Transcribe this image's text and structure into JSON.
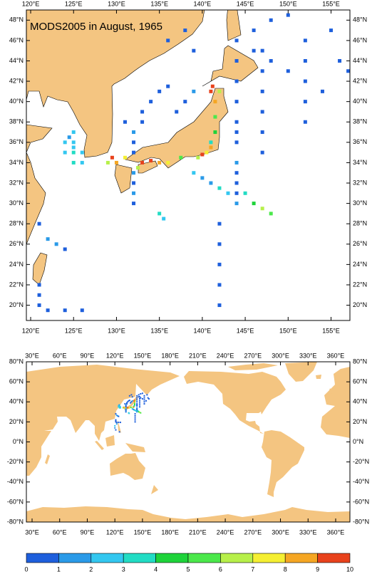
{
  "chart_data": {
    "type": "map",
    "title": "MODS2005 in August, 1965",
    "panels": [
      {
        "xlim": [
          119.5,
          157.2
        ],
        "ylim": [
          18.5,
          49
        ],
        "xticks": [
          {
            "value": 120,
            "label": "120°E"
          },
          {
            "value": 125,
            "label": "125°E"
          },
          {
            "value": 130,
            "label": "130°E"
          },
          {
            "value": 135,
            "label": "135°E"
          },
          {
            "value": 140,
            "label": "140°E"
          },
          {
            "value": 145,
            "label": "145°E"
          },
          {
            "value": 150,
            "label": "150°E"
          },
          {
            "value": 155,
            "label": "155°E"
          }
        ],
        "yticks": [
          {
            "value": 20,
            "label": "20°N"
          },
          {
            "value": 22,
            "label": "22°N"
          },
          {
            "value": 24,
            "label": "24°N"
          },
          {
            "value": 26,
            "label": "26°N"
          },
          {
            "value": 28,
            "label": "28°N"
          },
          {
            "value": 30,
            "label": "30°N"
          },
          {
            "value": 32,
            "label": "32°N"
          },
          {
            "value": 34,
            "label": "34°N"
          },
          {
            "value": 36,
            "label": "36°N"
          },
          {
            "value": 38,
            "label": "38°N"
          },
          {
            "value": 40,
            "label": "40°N"
          },
          {
            "value": 42,
            "label": "42°N"
          },
          {
            "value": 44,
            "label": "44°N"
          },
          {
            "value": 46,
            "label": "46°N"
          },
          {
            "value": 48,
            "label": "48°N"
          }
        ]
      },
      {
        "xlim": [
          23.8,
          375.5
        ],
        "ylim": [
          -80,
          80
        ],
        "xticks": [
          {
            "value": 30,
            "label": "30°E"
          },
          {
            "value": 60,
            "label": "60°E"
          },
          {
            "value": 90,
            "label": "90°E"
          },
          {
            "value": 120,
            "label": "120°E"
          },
          {
            "value": 150,
            "label": "150°E"
          },
          {
            "value": 180,
            "label": "180°E"
          },
          {
            "value": 210,
            "label": "210°E"
          },
          {
            "value": 240,
            "label": "240°E"
          },
          {
            "value": 270,
            "label": "270°E"
          },
          {
            "value": 300,
            "label": "300°E"
          },
          {
            "value": 330,
            "label": "330°E"
          },
          {
            "value": 360,
            "label": "360°E"
          }
        ],
        "yticks": [
          {
            "value": -80,
            "label": "-80°N"
          },
          {
            "value": -60,
            "label": "-60°N"
          },
          {
            "value": -40,
            "label": "-40°N"
          },
          {
            "value": -20,
            "label": "-20°N"
          },
          {
            "value": 0,
            "label": "0°N"
          },
          {
            "value": 20,
            "label": "20°N"
          },
          {
            "value": 40,
            "label": "40°N"
          },
          {
            "value": 60,
            "label": "60°N"
          },
          {
            "value": 80,
            "label": "80°N"
          }
        ]
      }
    ],
    "x": [
      144,
      144,
      144,
      144,
      144,
      144,
      144,
      144,
      144,
      144,
      144,
      147,
      147,
      147,
      147,
      147,
      147,
      152,
      152,
      152,
      152,
      152,
      139,
      140,
      141,
      142,
      143,
      145,
      146,
      147,
      148,
      140.5,
      141,
      140,
      139.5,
      141.5,
      141.5,
      141,
      141.2,
      142,
      141.5,
      141,
      129.5,
      130,
      129,
      131,
      133,
      134,
      135,
      136,
      132.5,
      137.5,
      125,
      125,
      125,
      126,
      125,
      126,
      125,
      124.5,
      124,
      124,
      133,
      133,
      134,
      135,
      136,
      132,
      131,
      137,
      138,
      139,
      132,
      132,
      132,
      132,
      132,
      132,
      144,
      146,
      148,
      150,
      155,
      156,
      157,
      121,
      121,
      121,
      121,
      122,
      123,
      124,
      122,
      124,
      126,
      142,
      142,
      142,
      142,
      142,
      136,
      138,
      139,
      146,
      148,
      150,
      154,
      135,
      135.5,
      120,
      120,
      121,
      122,
      125
    ],
    "y": [
      30,
      31,
      32,
      33,
      34,
      36,
      37,
      38,
      40,
      42,
      44,
      35,
      37,
      39,
      41,
      43,
      45,
      38,
      40,
      42,
      44,
      46,
      33,
      32.5,
      32,
      31.5,
      31,
      31,
      30,
      29.5,
      29,
      35,
      35.5,
      34.8,
      34.5,
      38.5,
      40,
      41,
      41.5,
      41,
      37,
      36,
      34.5,
      34,
      34,
      34.5,
      34,
      34.2,
      34,
      34,
      33.5,
      34.5,
      36,
      35.5,
      35,
      35,
      34,
      34,
      37,
      36.5,
      36,
      35,
      38,
      39,
      40,
      41,
      41.5,
      37,
      38,
      39,
      40,
      41,
      30,
      31,
      32,
      33,
      35,
      36,
      46,
      47,
      48,
      48.5,
      47,
      44,
      43,
      20,
      21,
      22,
      28,
      26.5,
      26,
      25.5,
      19.5,
      19.5,
      19.5,
      20,
      22,
      24,
      26,
      28,
      46,
      47,
      45,
      45,
      44,
      43,
      41,
      29,
      28.5,
      16,
      14,
      12,
      18,
      10
    ],
    "values": [
      1,
      0.5,
      0.5,
      0.5,
      1,
      0.5,
      0.5,
      0.5,
      0.5,
      0.5,
      0.5,
      0.5,
      0.5,
      0.5,
      0.5,
      0.5,
      0.5,
      0.5,
      0.5,
      0.5,
      0.5,
      0.5,
      2,
      1,
      1,
      3,
      2,
      3,
      4,
      6,
      5,
      7,
      8,
      9,
      6,
      5,
      8,
      9,
      10,
      6,
      4,
      3,
      9,
      8,
      6,
      7,
      10,
      9,
      8,
      7,
      6,
      5,
      2,
      2,
      3,
      2,
      3,
      2,
      2,
      1,
      2,
      2,
      0.5,
      0.5,
      0.5,
      0.5,
      0.5,
      1,
      0.5,
      0.5,
      0.5,
      1,
      0.5,
      1,
      0.5,
      1,
      0.5,
      0.5,
      0.5,
      0.5,
      0.5,
      0.5,
      0.5,
      0.5,
      0.5,
      0.5,
      0.5,
      0.5,
      0.5,
      1,
      1,
      0.5,
      0.5,
      0.5,
      0.5,
      0.5,
      0.5,
      0.5,
      0.5,
      0.5,
      0.5,
      0.5,
      0.5,
      0.5,
      0.5,
      0.5,
      0.5,
      3,
      2,
      2,
      1,
      0.5,
      1,
      0.5
    ],
    "colorbar": {
      "ticks": [
        0,
        1,
        2,
        3,
        4,
        5,
        6,
        7,
        8,
        9,
        10
      ],
      "colors": [
        "#1e5fdc",
        "#2a9ae8",
        "#33c7f0",
        "#22dcc4",
        "#1ed33a",
        "#4be84b",
        "#b7f04a",
        "#f5ef32",
        "#f5a623",
        "#e8421c"
      ]
    }
  }
}
